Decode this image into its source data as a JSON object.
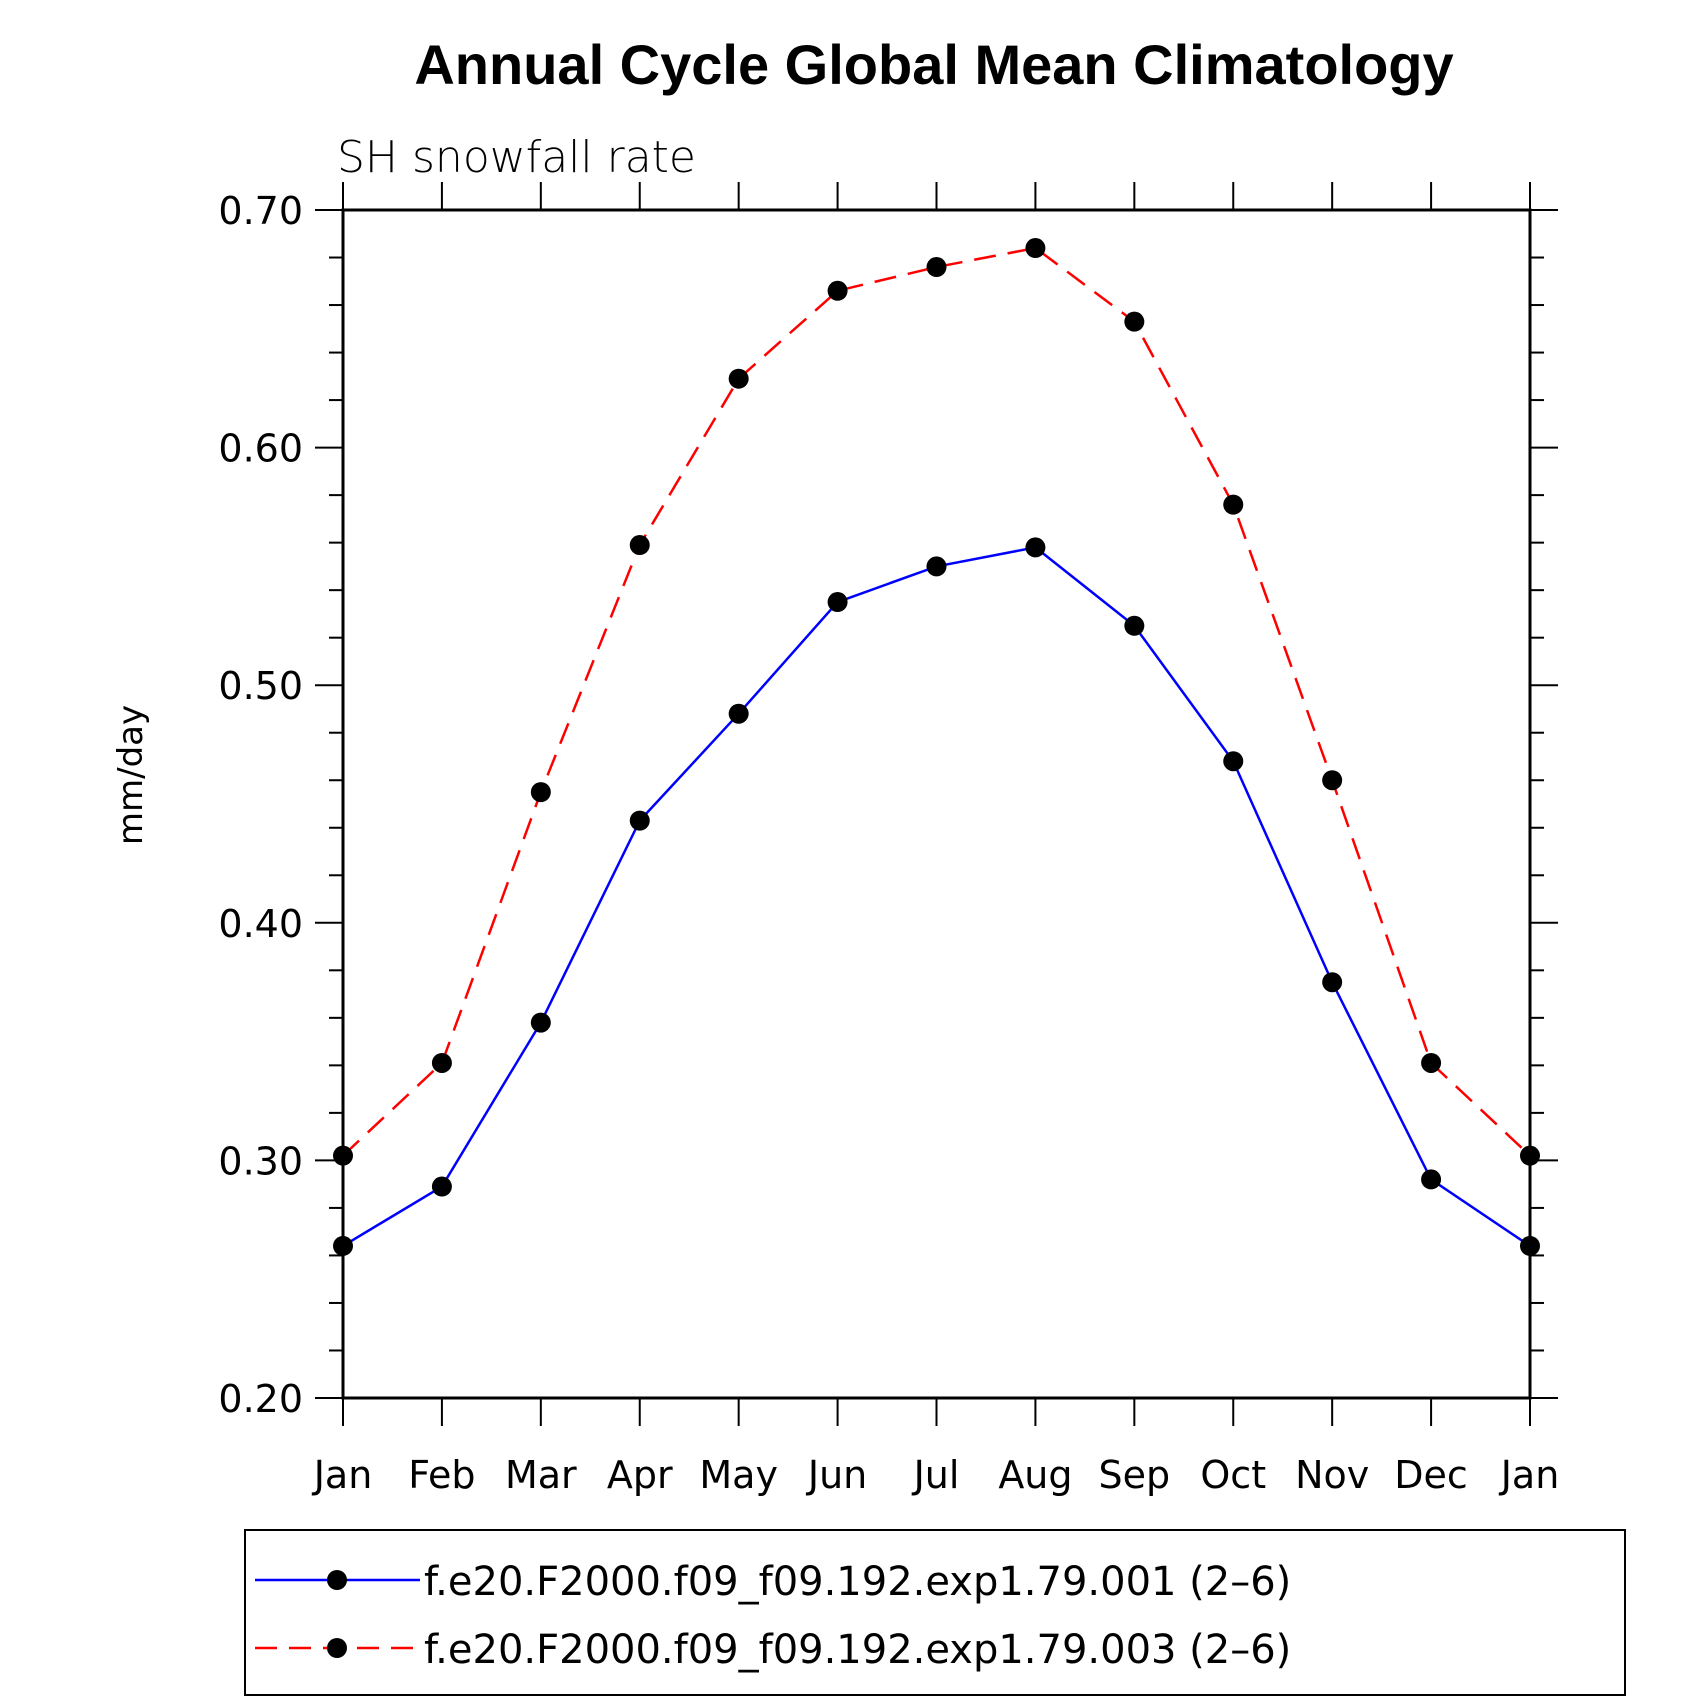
{
  "chart_data": {
    "type": "line",
    "title": "Annual Cycle Global Mean Climatology",
    "subtitle": "SH snowfall rate",
    "ylabel": "mm/day",
    "xlabel": "",
    "ylim": [
      0.2,
      0.7
    ],
    "yticks": [
      "0.20",
      "0.30",
      "0.40",
      "0.50",
      "0.60",
      "0.70"
    ],
    "categories": [
      "Jan",
      "Feb",
      "Mar",
      "Apr",
      "May",
      "Jun",
      "Jul",
      "Aug",
      "Sep",
      "Oct",
      "Nov",
      "Dec",
      "Jan"
    ],
    "grid": false,
    "legend_position": "bottom",
    "series": [
      {
        "name": "f.e20.F2000.f09_f09.192.exp1.79.001 (2–6)",
        "color": "#0000ff",
        "dash": "solid",
        "marker": "filled-circle",
        "values": [
          0.264,
          0.289,
          0.358,
          0.443,
          0.488,
          0.535,
          0.55,
          0.558,
          0.525,
          0.468,
          0.375,
          0.292,
          0.264
        ]
      },
      {
        "name": "f.e20.F2000.f09_f09.192.exp1.79.003 (2–6)",
        "color": "#ff0000",
        "dash": "dashed",
        "marker": "filled-circle",
        "values": [
          0.302,
          0.341,
          0.455,
          0.559,
          0.629,
          0.666,
          0.676,
          0.684,
          0.653,
          0.576,
          0.46,
          0.341,
          0.302
        ]
      }
    ]
  }
}
